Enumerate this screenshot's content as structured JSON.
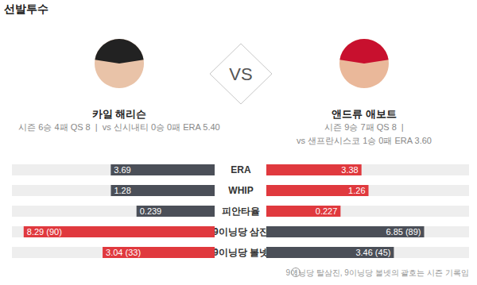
{
  "chart_data": {
    "type": "bar",
    "title": "선발투수",
    "orientation": "horizontal",
    "data_labels": true,
    "tick_labels": false,
    "grid": false,
    "vs_label": "VS",
    "note": "9이닝당 탈삼진, 9이닝당 볼넷의 괄호는 시즌 기록임",
    "categories": [
      "ERA",
      "WHIP",
      "피안타율",
      "9이닝당 삼진",
      "9이닝당 볼넷"
    ],
    "xlim_by_category": [
      [
        0,
        7.2
      ],
      [
        0,
        2.5
      ],
      [
        0,
        0.62
      ],
      [
        0,
        8.8
      ],
      [
        0,
        5.5
      ]
    ],
    "series": [
      {
        "name": "카일 해리슨",
        "record_lines": [
          "시즌 6승 4패 QS 8  |  vs 신시내티 0승 0패 ERA 5.40"
        ],
        "values": [
          3.69,
          1.28,
          0.239,
          8.29,
          3.04
        ],
        "value_labels": [
          "3.69",
          "1.28",
          "0.239",
          "8.29 (90)",
          "3.04 (33)"
        ],
        "colors": [
          "#4b4f58",
          "#4b4f58",
          "#4b4f58",
          "#e0393e",
          "#e0393e"
        ]
      },
      {
        "name": "앤드류 애보트",
        "record_lines": [
          "시즌 9승 7패 QS 8  |",
          "vs 샌프란시스코 1승 0패 ERA 3.60"
        ],
        "values": [
          3.38,
          1.26,
          0.227,
          6.85,
          3.46
        ],
        "value_labels": [
          "3.38",
          "1.26",
          "0.227",
          "6.85 (89)",
          "3.46 (45)"
        ],
        "colors": [
          "#e0393e",
          "#e0393e",
          "#e0393e",
          "#4b4f58",
          "#4b4f58"
        ]
      }
    ]
  }
}
